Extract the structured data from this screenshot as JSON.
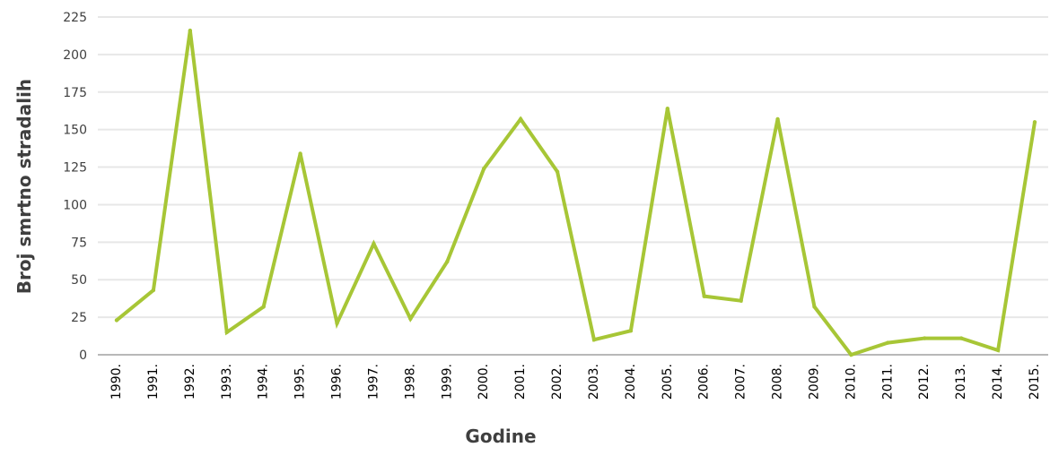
{
  "chart_data": {
    "type": "line",
    "title": "",
    "xlabel": "Godine",
    "ylabel": "Broj smrtno stradalih",
    "ylim": [
      0,
      225
    ],
    "yticks": [
      0,
      25,
      50,
      75,
      100,
      125,
      150,
      175,
      200,
      225
    ],
    "grid": true,
    "legend": "none",
    "x": [
      "1990.",
      "1991.",
      "1992.",
      "1993.",
      "1994.",
      "1995.",
      "1996.",
      "1997.",
      "1998.",
      "1999.",
      "2000.",
      "2001.",
      "2002.",
      "2003.",
      "2004.",
      "2005.",
      "2006.",
      "2007.",
      "2008.",
      "2009.",
      "2010.",
      "2011.",
      "2012.",
      "2013.",
      "2014.",
      "2015."
    ],
    "series": [
      {
        "color": "#a7c636",
        "values": [
          23,
          43,
          216,
          15,
          32,
          134,
          21,
          74,
          24,
          62,
          124,
          157,
          122,
          10,
          16,
          164,
          39,
          36,
          157,
          32,
          0,
          8,
          11,
          11,
          3,
          155
        ]
      }
    ]
  }
}
